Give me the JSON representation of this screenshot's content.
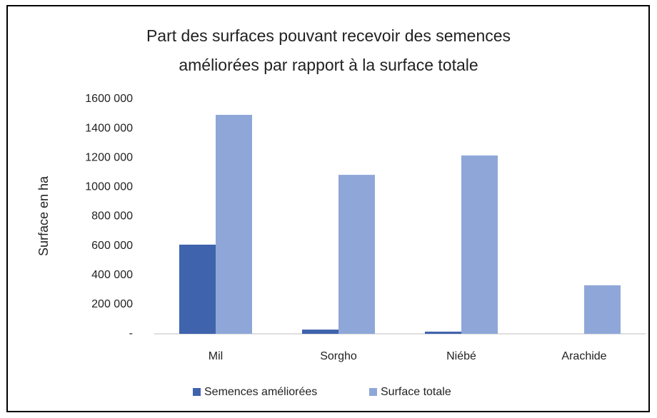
{
  "chart_data": {
    "type": "bar",
    "title": "Part des surfaces pouvant recevoir des semences améliorées par rapport à la surface totale",
    "y_label": "Surface en ha",
    "categories": [
      "Mil",
      "Sorgho",
      "Niébé",
      "Arachide"
    ],
    "series": [
      {
        "name": "Semences améliorées",
        "color": "#3f63ad",
        "values": [
          608000,
          29000,
          15000,
          0
        ]
      },
      {
        "name": "Surface totale",
        "color": "#8fa7d8",
        "values": [
          1493000,
          1084000,
          1216000,
          331000
        ]
      }
    ],
    "ylim": [
      0,
      1600000
    ],
    "yticks": [
      {
        "value": 0,
        "label": "-"
      },
      {
        "value": 200000,
        "label": "200 000"
      },
      {
        "value": 400000,
        "label": "400 000"
      },
      {
        "value": 600000,
        "label": "600 000"
      },
      {
        "value": 800000,
        "label": "800 000"
      },
      {
        "value": 1000000,
        "label": "1000 000"
      },
      {
        "value": 1200000,
        "label": "1200 000"
      },
      {
        "value": 1400000,
        "label": "1400 000"
      },
      {
        "value": 1600000,
        "label": "1600 000"
      }
    ],
    "grid": false,
    "legend": "bottom"
  }
}
